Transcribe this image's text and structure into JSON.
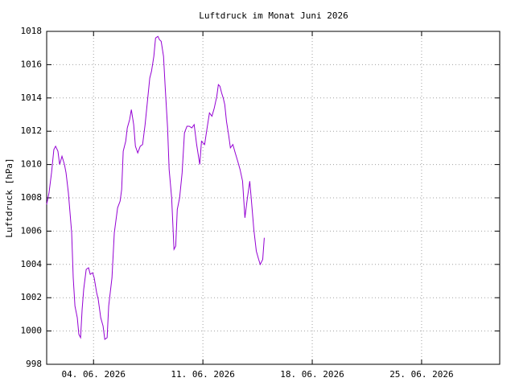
{
  "chart_data": {
    "type": "line",
    "title": "Luftdruck im Monat Juni 2026",
    "y_label": "Luftdruck [hPa]",
    "x": [
      1.0,
      1.15,
      1.31,
      1.46,
      1.57,
      1.72,
      1.83,
      1.98,
      2.14,
      2.24,
      2.39,
      2.6,
      2.7,
      2.81,
      2.96,
      3.06,
      3.17,
      3.27,
      3.37,
      3.53,
      3.68,
      3.79,
      3.94,
      4.04,
      4.2,
      4.3,
      4.46,
      4.61,
      4.72,
      4.87,
      4.97,
      5.18,
      5.33,
      5.54,
      5.7,
      5.8,
      5.9,
      6.06,
      6.16,
      6.31,
      6.42,
      6.57,
      6.68,
      6.83,
      6.99,
      7.14,
      7.3,
      7.45,
      7.6,
      7.71,
      7.86,
      7.97,
      8.12,
      8.22,
      8.33,
      8.48,
      8.59,
      8.74,
      8.84,
      9.0,
      9.15,
      9.26,
      9.36,
      9.51,
      9.67,
      9.82,
      9.98,
      10.13,
      10.29,
      10.44,
      10.6,
      10.8,
      10.91,
      11.11,
      11.27,
      11.42,
      11.58,
      11.73,
      11.89,
      11.99,
      12.09,
      12.2,
      12.3,
      12.4,
      12.51,
      12.66,
      12.76,
      12.92,
      13.07,
      13.23,
      13.38,
      13.54,
      13.69,
      13.85,
      14.0,
      14.11,
      14.26,
      14.42,
      14.57,
      14.67,
      14.83,
      14.93
    ],
    "series": [
      {
        "name": "Luftdruck",
        "color": "#9400d3",
        "values": [
          1007.6,
          1008.3,
          1009.5,
          1010.9,
          1011.1,
          1010.8,
          1010.0,
          1010.5,
          1010.0,
          1009.5,
          1008.3,
          1005.9,
          1003.2,
          1001.5,
          1000.8,
          999.8,
          999.6,
          1001.3,
          1002.5,
          1003.7,
          1003.8,
          1003.4,
          1003.5,
          1003.2,
          1002.3,
          1001.9,
          1000.8,
          1000.3,
          999.5,
          999.6,
          1001.5,
          1003.2,
          1005.9,
          1007.4,
          1007.8,
          1008.5,
          1010.8,
          1011.4,
          1012.2,
          1012.7,
          1013.3,
          1012.4,
          1011.1,
          1010.7,
          1011.1,
          1011.2,
          1012.4,
          1013.8,
          1015.2,
          1015.6,
          1016.5,
          1017.6,
          1017.7,
          1017.5,
          1017.4,
          1016.5,
          1014.6,
          1012.2,
          1009.7,
          1008.0,
          1004.9,
          1005.1,
          1007.3,
          1008.0,
          1009.5,
          1011.9,
          1012.3,
          1012.3,
          1012.2,
          1012.4,
          1011.2,
          1010.0,
          1011.4,
          1011.2,
          1012.2,
          1013.1,
          1012.9,
          1013.4,
          1014.1,
          1014.8,
          1014.7,
          1014.3,
          1014.0,
          1013.6,
          1012.6,
          1011.7,
          1011.0,
          1011.2,
          1010.7,
          1010.2,
          1009.7,
          1009.0,
          1006.8,
          1008.0,
          1009.0,
          1007.8,
          1006.1,
          1004.8,
          1004.3,
          1004.0,
          1004.3,
          1005.6
        ]
      }
    ],
    "xlim": [
      1,
      30
    ],
    "xticks": [
      {
        "value": 4,
        "label": "04. 06. 2026"
      },
      {
        "value": 11,
        "label": "11. 06. 2026"
      },
      {
        "value": 18,
        "label": "18. 06. 2026"
      },
      {
        "value": 25,
        "label": "25. 06. 2026"
      }
    ],
    "ylim": [
      998,
      1018
    ],
    "yticks": [
      998,
      1000,
      1002,
      1004,
      1006,
      1008,
      1010,
      1012,
      1014,
      1016,
      1018
    ],
    "grid": true
  }
}
